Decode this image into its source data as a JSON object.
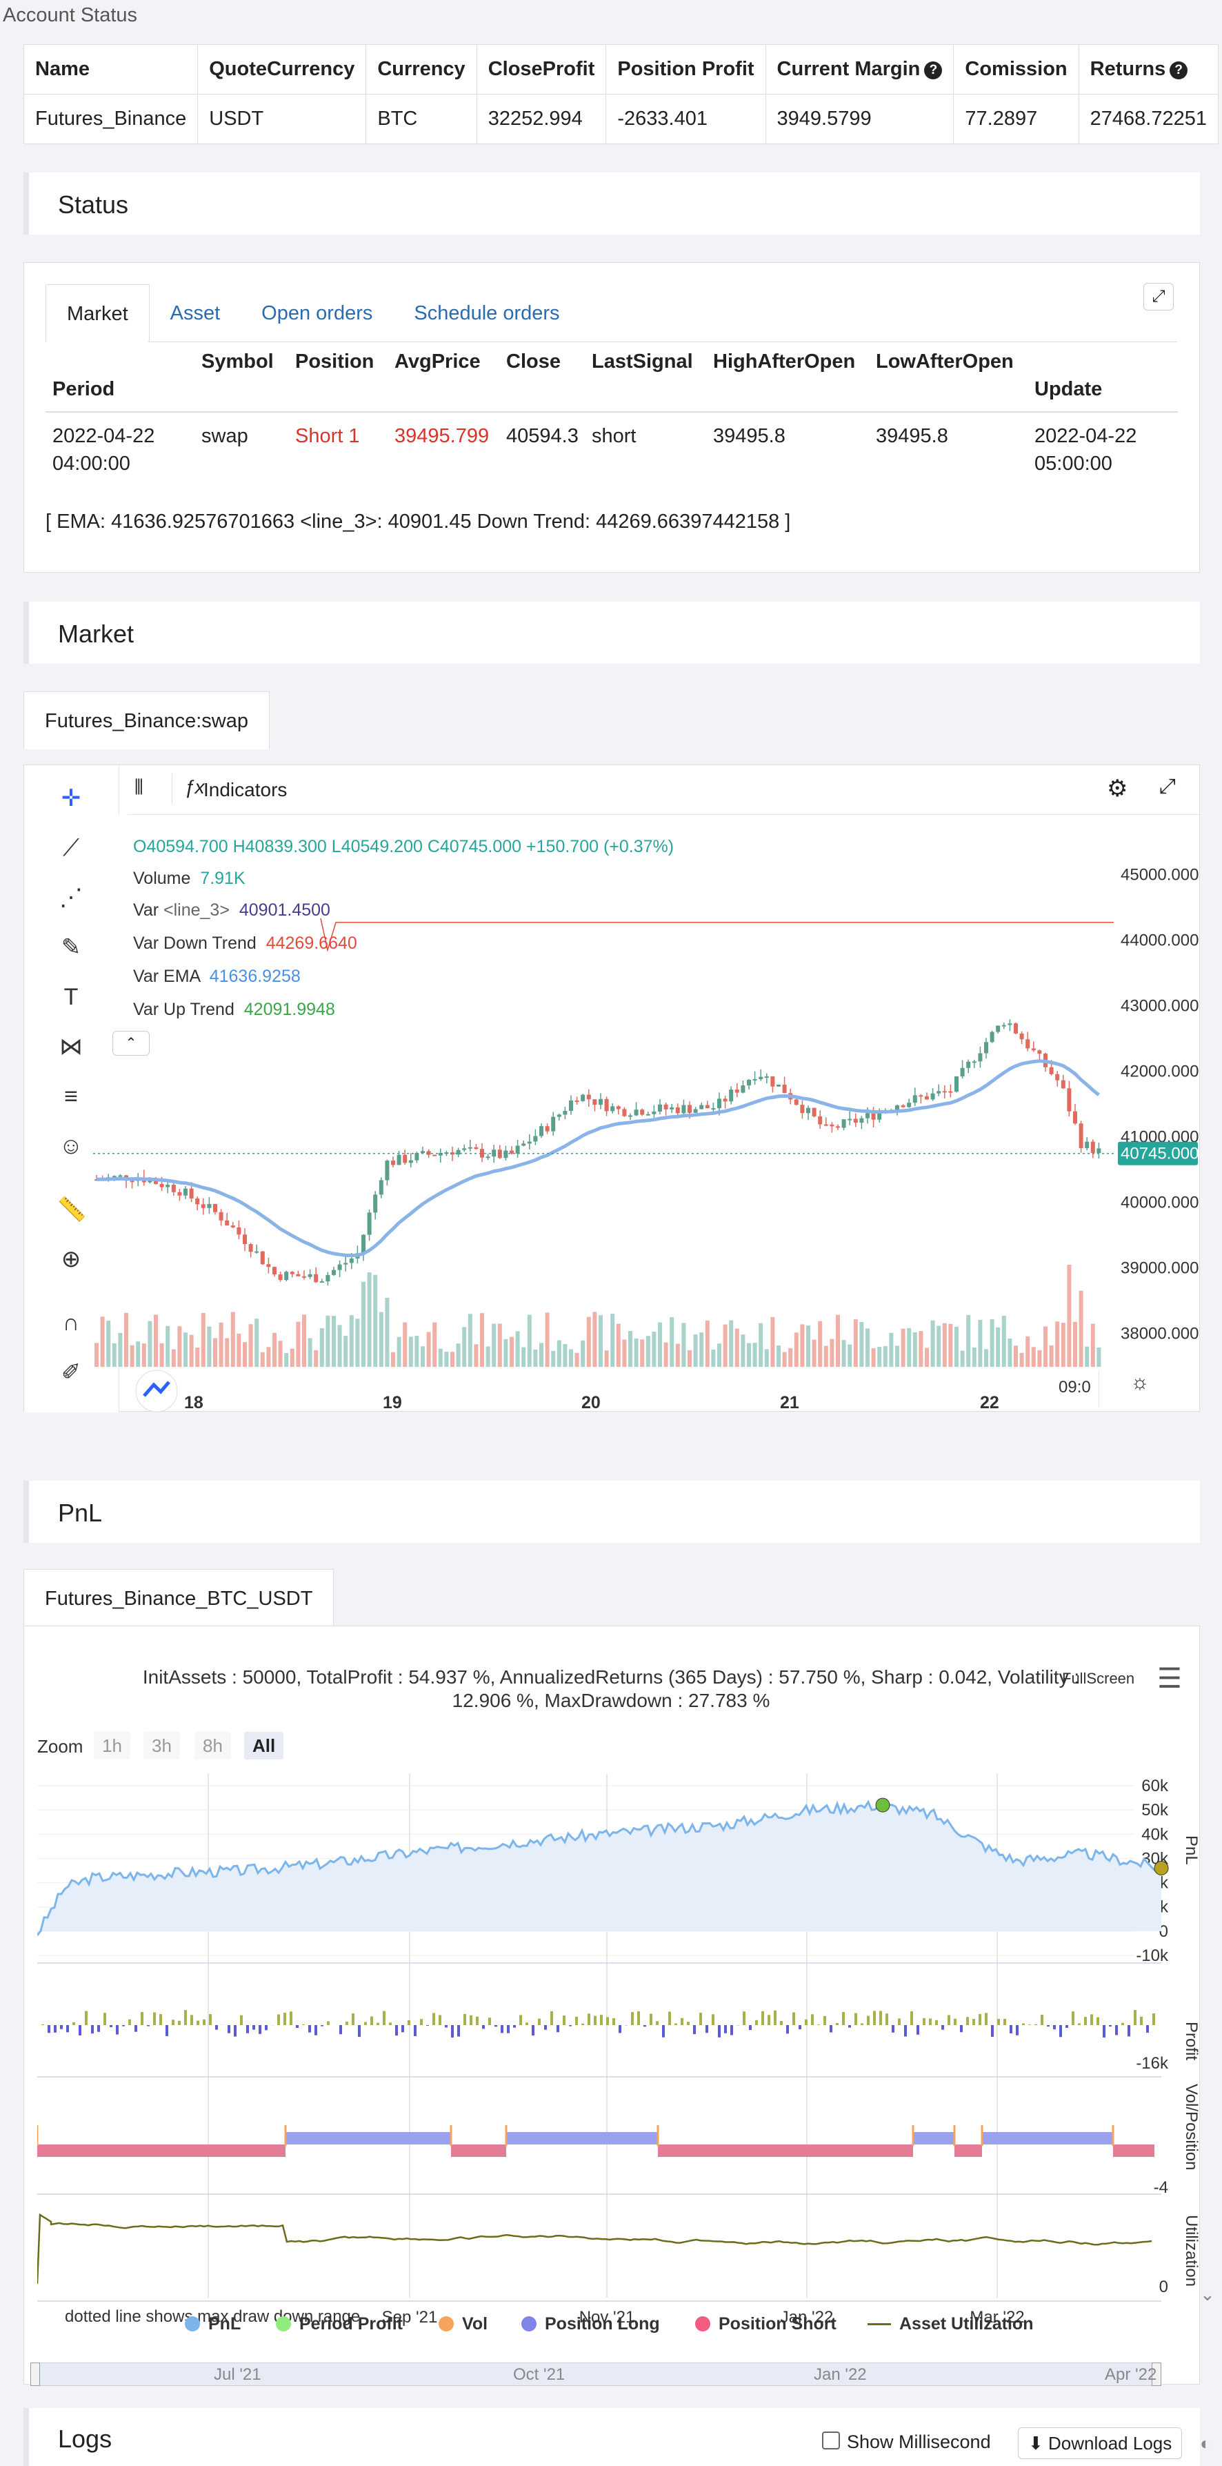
{
  "account": {
    "title": "Account Status",
    "headers": [
      "Name",
      "QuoteCurrency",
      "Currency",
      "CloseProfit",
      "Position Profit",
      "Current Margin",
      "Comission",
      "Returns"
    ],
    "row": [
      "Futures_Binance",
      "USDT",
      "BTC",
      "32252.994",
      "-2633.401",
      "3949.5799",
      "77.2897",
      "27468.72251"
    ]
  },
  "status": {
    "title": "Status",
    "tabs": [
      "Market",
      "Asset",
      "Open orders",
      "Schedule orders"
    ],
    "headers": [
      "Period",
      "Symbol",
      "Position",
      "AvgPrice",
      "Close",
      "LastSignal",
      "HighAfterOpen",
      "LowAfterOpen",
      "Update"
    ],
    "row": {
      "period": "2022-04-22 04:00:00",
      "symbol": "swap",
      "position": "Short 1",
      "avgprice": "39495.799",
      "close": "40594.3",
      "lastsignal": "short",
      "high": "39495.8",
      "low": "39495.8",
      "update": "2022-04-22 05:00:00"
    },
    "note": "[ EMA: 41636.92576701663 <line_3>: 40901.45 Down Trend: 44269.66397442158 ]"
  },
  "market": {
    "title": "Market",
    "tab": "Futures_Binance:swap",
    "indicators_label": "Indicators",
    "ohlc": {
      "o": "40594.700",
      "h": "40839.300",
      "l": "40549.200",
      "c": "40745.000",
      "chg": "+150.700 (+0.37%)"
    },
    "volume": {
      "label": "Volume",
      "value": "7.91K"
    },
    "vars": [
      {
        "label": "Var",
        "name": "<line_3>",
        "value": "40901.4500",
        "color": "#4a3c8c"
      },
      {
        "label": "Var",
        "name": "Down Trend",
        "value": "44269.6640",
        "color": "#e04b3b"
      },
      {
        "label": "Var",
        "name": "EMA",
        "value": "41636.9258",
        "color": "#4a90e2"
      },
      {
        "label": "Var",
        "name": "Up Trend",
        "value": "42091.9948",
        "color": "#3aa648"
      }
    ],
    "price_ticks": [
      "45000.000",
      "44000.000",
      "43000.000",
      "42000.000",
      "41000.000",
      "40000.000",
      "39000.000",
      "38000.000"
    ],
    "last_price": "40745.000",
    "time_ticks": [
      "18",
      "19",
      "20",
      "21",
      "22"
    ],
    "time_label": "09:0"
  },
  "chart_data": {
    "type": "candlestick",
    "ylim": [
      37700,
      45700
    ],
    "series": [
      {
        "name": "EMA",
        "color": "#8ab4e8"
      },
      {
        "name": "Down Trend",
        "color": "#e04b3b",
        "value": 44269.66
      }
    ],
    "last": 40745
  },
  "pnl": {
    "title": "PnL",
    "tab": "Futures_Binance_BTC_USDT",
    "summary_line1": "InitAssets : 50000, TotalProfit : 54.937 %, AnnualizedReturns (365 Days) : 57.750 %, Sharp : 0.042, Volatility :",
    "summary_line2": "12.906 %, MaxDrawdown : 27.783 %",
    "fullscreen": "FullScreen",
    "zoom_label": "Zoom",
    "zoom_buttons": [
      "1h",
      "3h",
      "8h",
      "All"
    ],
    "y_ticks_pnl": [
      "60k",
      "50k",
      "40k",
      "30k",
      "20k",
      "10k",
      "0",
      "-10k"
    ],
    "pnl_axis": "PnL",
    "profit_axis": "Profit",
    "profit_tick": "-16k",
    "vol_axis": "Vol/Position",
    "vol_tick": "-4",
    "util_axis": "Utilization",
    "util_tick": "0",
    "month_ticks": [
      "Sep '21",
      "Nov '21",
      "Jan '22",
      "Mar '22"
    ],
    "nav_ticks": [
      "Jul '21",
      "Oct '21",
      "Jan '22",
      "Apr '22"
    ],
    "dotted_note": "dotted line shows max draw down range",
    "legend": [
      {
        "name": "PnL",
        "color": "#7cb5ec"
      },
      {
        "name": "Period Profit",
        "color": "#90ed7d"
      },
      {
        "name": "Vol",
        "color": "#f7a35c"
      },
      {
        "name": "Position Long",
        "color": "#8085e9"
      },
      {
        "name": "Position Short",
        "color": "#f15c80"
      },
      {
        "name": "Asset Utilization",
        "color": "#6b6b1a"
      }
    ]
  },
  "logs": {
    "title": "Logs",
    "show_ms": "Show Millisecond",
    "download": "Download Logs"
  }
}
